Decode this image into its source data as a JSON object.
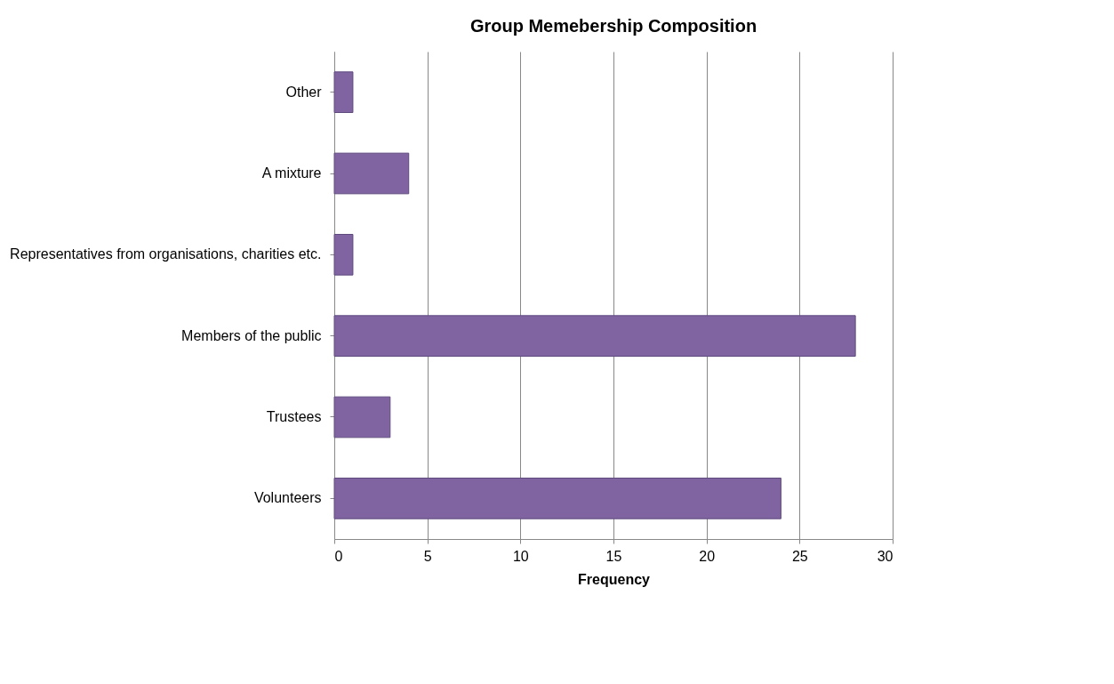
{
  "chart_data": {
    "type": "bar",
    "orientation": "horizontal",
    "title": "Group Memebership Composition",
    "xlabel": "Frequency",
    "categories": [
      "Other",
      "A mixture",
      "Representatives from organisations, charities etc.",
      "Members of the public",
      "Trustees",
      "Volunteers"
    ],
    "values": [
      1,
      4,
      1,
      28,
      3,
      24
    ],
    "color": "#8064a2",
    "xlim": [
      0,
      30
    ],
    "xticks": [
      0,
      5,
      10,
      15,
      20,
      25,
      30
    ],
    "grid": "x"
  }
}
